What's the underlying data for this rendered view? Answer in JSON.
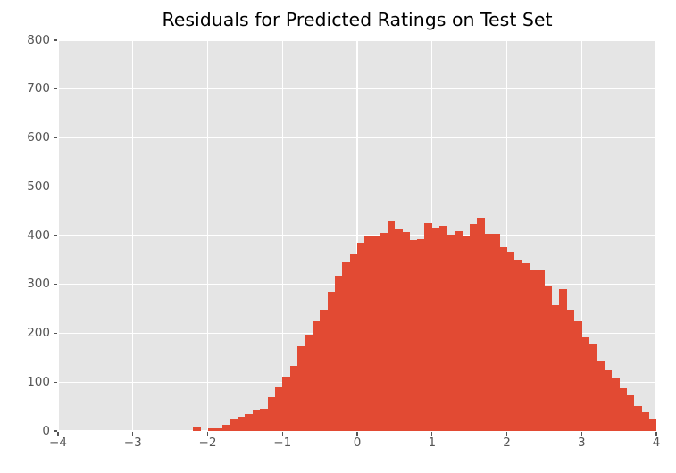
{
  "chart_data": {
    "type": "bar",
    "subtype": "histogram",
    "title": "Residuals for Predicted Ratings on Test Set",
    "xlabel": "",
    "ylabel": "",
    "xlim": [
      -4,
      4
    ],
    "ylim": [
      0,
      800
    ],
    "grid": true,
    "legend": "none",
    "bin_start": -2.2,
    "bin_width": 0.1,
    "values": [
      7,
      0,
      5,
      6,
      13,
      25,
      29,
      34,
      44,
      45,
      69,
      90,
      111,
      134,
      174,
      198,
      225,
      248,
      285,
      318,
      345,
      362,
      386,
      400,
      398,
      405,
      430,
      412,
      408,
      390,
      393,
      426,
      414,
      420,
      402,
      409,
      400,
      424,
      436,
      404,
      404,
      377,
      368,
      350,
      344,
      330,
      328,
      298,
      258,
      290,
      248,
      225,
      192,
      178,
      144,
      125,
      107,
      88,
      73,
      52,
      38,
      25
    ],
    "x_tick_values": [
      -4,
      -3,
      -2,
      -1,
      0,
      1,
      2,
      3,
      4
    ],
    "x_tick_labels": [
      "−4",
      "−3",
      "−2",
      "−1",
      "0",
      "1",
      "2",
      "3",
      "4"
    ],
    "y_tick_values": [
      0,
      100,
      200,
      300,
      400,
      500,
      600,
      700,
      800
    ],
    "y_tick_labels": [
      "0",
      "100",
      "200",
      "300",
      "400",
      "500",
      "600",
      "700",
      "800"
    ],
    "colors": {
      "bar": "#E24A33",
      "plot_background": "#E5E5E5",
      "figure_background": "#FFFFFF",
      "gridline": "#FFFFFF",
      "tick": "#555555",
      "tick_label": "#555555",
      "title": "#000000"
    }
  }
}
